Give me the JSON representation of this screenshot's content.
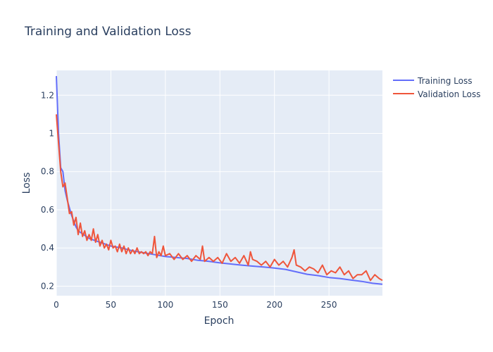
{
  "chart_data": {
    "type": "line",
    "title": "Training and Validation Loss",
    "xlabel": "Epoch",
    "ylabel": "Loss",
    "xlim": [
      0,
      299
    ],
    "ylim": [
      0.15,
      1.33
    ],
    "x_ticks": [
      0,
      50,
      100,
      150,
      200,
      250
    ],
    "y_ticks": [
      0.2,
      0.4,
      0.6,
      0.8,
      1,
      1.2
    ],
    "x_tick_labels": [
      "0",
      "50",
      "100",
      "150",
      "200",
      "250"
    ],
    "y_tick_labels": [
      "0.2",
      "0.4",
      "0.6",
      "0.8",
      "1",
      "1.2"
    ],
    "grid": true,
    "legend_position": "top-right, outside plot",
    "series": [
      {
        "name": "Training Loss",
        "color": "#636efa",
        "x": [
          0,
          2,
          4,
          6,
          8,
          10,
          12,
          14,
          16,
          18,
          20,
          25,
          30,
          35,
          40,
          45,
          50,
          60,
          70,
          80,
          90,
          100,
          110,
          120,
          130,
          140,
          150,
          160,
          170,
          180,
          190,
          200,
          210,
          220,
          230,
          240,
          250,
          260,
          270,
          280,
          290,
          299
        ],
        "values": [
          1.3,
          1.0,
          0.82,
          0.8,
          0.7,
          0.65,
          0.61,
          0.57,
          0.54,
          0.51,
          0.49,
          0.47,
          0.45,
          0.44,
          0.43,
          0.42,
          0.41,
          0.4,
          0.385,
          0.375,
          0.365,
          0.355,
          0.35,
          0.345,
          0.335,
          0.33,
          0.322,
          0.316,
          0.31,
          0.305,
          0.3,
          0.295,
          0.288,
          0.275,
          0.262,
          0.255,
          0.245,
          0.24,
          0.232,
          0.225,
          0.215,
          0.21
        ]
      },
      {
        "name": "Validation Loss",
        "color": "#ef553b",
        "x": [
          0,
          2,
          4,
          6,
          8,
          10,
          12,
          14,
          16,
          18,
          20,
          22,
          24,
          26,
          28,
          30,
          32,
          34,
          36,
          38,
          40,
          42,
          44,
          46,
          48,
          50,
          52,
          54,
          56,
          58,
          60,
          62,
          64,
          66,
          68,
          70,
          72,
          74,
          76,
          78,
          80,
          82,
          84,
          86,
          88,
          90,
          92,
          94,
          96,
          98,
          100,
          104,
          108,
          112,
          116,
          120,
          124,
          128,
          132,
          134,
          136,
          140,
          144,
          148,
          152,
          156,
          160,
          164,
          168,
          172,
          176,
          178,
          180,
          184,
          188,
          192,
          196,
          200,
          204,
          208,
          212,
          216,
          218,
          220,
          224,
          228,
          232,
          236,
          240,
          244,
          248,
          252,
          256,
          260,
          264,
          268,
          272,
          276,
          280,
          284,
          288,
          292,
          296,
          299
        ],
        "values": [
          1.1,
          0.95,
          0.8,
          0.72,
          0.74,
          0.66,
          0.58,
          0.59,
          0.52,
          0.56,
          0.47,
          0.53,
          0.46,
          0.49,
          0.44,
          0.47,
          0.44,
          0.5,
          0.43,
          0.47,
          0.41,
          0.44,
          0.4,
          0.42,
          0.39,
          0.44,
          0.4,
          0.41,
          0.38,
          0.42,
          0.38,
          0.41,
          0.37,
          0.4,
          0.37,
          0.39,
          0.37,
          0.4,
          0.37,
          0.38,
          0.37,
          0.38,
          0.36,
          0.38,
          0.37,
          0.46,
          0.35,
          0.38,
          0.36,
          0.41,
          0.36,
          0.37,
          0.34,
          0.37,
          0.34,
          0.36,
          0.33,
          0.36,
          0.34,
          0.41,
          0.33,
          0.35,
          0.33,
          0.35,
          0.32,
          0.37,
          0.33,
          0.35,
          0.32,
          0.36,
          0.31,
          0.38,
          0.34,
          0.33,
          0.31,
          0.33,
          0.3,
          0.34,
          0.31,
          0.33,
          0.3,
          0.35,
          0.39,
          0.31,
          0.3,
          0.28,
          0.3,
          0.29,
          0.27,
          0.31,
          0.26,
          0.28,
          0.27,
          0.3,
          0.26,
          0.28,
          0.24,
          0.26,
          0.26,
          0.28,
          0.23,
          0.26,
          0.24,
          0.23
        ]
      }
    ]
  }
}
